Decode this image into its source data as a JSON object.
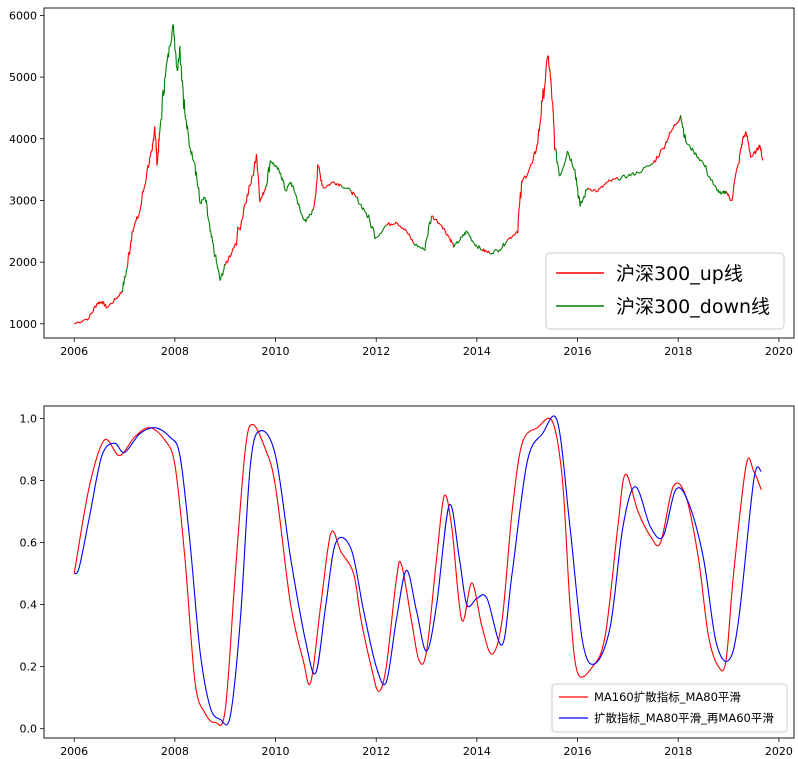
{
  "chart_data": [
    {
      "type": "line",
      "xlim": [
        2005.4,
        2020.3
      ],
      "ylim": [
        770,
        6120
      ],
      "xticks": [
        2006,
        2008,
        2010,
        2012,
        2014,
        2016,
        2018,
        2020
      ],
      "yticks": [
        1000,
        2000,
        3000,
        4000,
        5000,
        6000
      ],
      "grid": false,
      "legend": {
        "placement": "lower-right",
        "entries": [
          "沪深300_up线",
          "沪深300_down线"
        ]
      },
      "colors": {
        "up": "#ff0000",
        "down": "#008000"
      },
      "points": [
        [
          2006.0,
          1000,
          "u"
        ],
        [
          2006.3,
          1100,
          "u"
        ],
        [
          2006.45,
          1330,
          "u"
        ],
        [
          2006.55,
          1360,
          "u"
        ],
        [
          2006.65,
          1260,
          "u"
        ],
        [
          2006.85,
          1420,
          "u"
        ],
        [
          2006.95,
          1530,
          "d"
        ],
        [
          2007.05,
          1900,
          "u"
        ],
        [
          2007.15,
          2500,
          "u"
        ],
        [
          2007.3,
          2800,
          "u"
        ],
        [
          2007.45,
          3500,
          "u"
        ],
        [
          2007.55,
          3800,
          "u"
        ],
        [
          2007.6,
          4200,
          "u"
        ],
        [
          2007.65,
          3600,
          "u"
        ],
        [
          2007.7,
          4100,
          "d"
        ],
        [
          2007.8,
          5000,
          "d"
        ],
        [
          2007.9,
          5500,
          "d"
        ],
        [
          2007.97,
          5850,
          "d"
        ],
        [
          2008.05,
          5100,
          "d"
        ],
        [
          2008.1,
          5500,
          "d"
        ],
        [
          2008.2,
          4400,
          "d"
        ],
        [
          2008.3,
          3850,
          "d"
        ],
        [
          2008.4,
          3600,
          "d"
        ],
        [
          2008.5,
          2950,
          "d"
        ],
        [
          2008.6,
          3050,
          "d"
        ],
        [
          2008.7,
          2500,
          "d"
        ],
        [
          2008.8,
          2100,
          "d"
        ],
        [
          2008.9,
          1700,
          "d"
        ],
        [
          2009.0,
          1950,
          "u"
        ],
        [
          2009.2,
          2300,
          "u"
        ],
        [
          2009.4,
          2950,
          "u"
        ],
        [
          2009.55,
          3400,
          "u"
        ],
        [
          2009.62,
          3750,
          "u"
        ],
        [
          2009.7,
          3000,
          "u"
        ],
        [
          2009.8,
          3200,
          "d"
        ],
        [
          2009.9,
          3650,
          "d"
        ],
        [
          2010.0,
          3550,
          "d"
        ],
        [
          2010.1,
          3450,
          "d"
        ],
        [
          2010.2,
          3150,
          "d"
        ],
        [
          2010.3,
          3300,
          "d"
        ],
        [
          2010.4,
          3100,
          "d"
        ],
        [
          2010.5,
          2800,
          "d"
        ],
        [
          2010.6,
          2650,
          "d"
        ],
        [
          2010.75,
          2850,
          "u"
        ],
        [
          2010.85,
          3550,
          "u"
        ],
        [
          2010.95,
          3200,
          "u"
        ],
        [
          2011.15,
          3300,
          "u"
        ],
        [
          2011.3,
          3250,
          "d"
        ],
        [
          2011.5,
          3150,
          "u"
        ],
        [
          2011.6,
          3050,
          "d"
        ],
        [
          2011.8,
          2800,
          "d"
        ],
        [
          2012.0,
          2400,
          "d"
        ],
        [
          2012.2,
          2600,
          "u"
        ],
        [
          2012.4,
          2650,
          "u"
        ],
        [
          2012.6,
          2500,
          "u"
        ],
        [
          2012.75,
          2300,
          "d"
        ],
        [
          2012.95,
          2200,
          "d"
        ],
        [
          2013.1,
          2750,
          "u"
        ],
        [
          2013.3,
          2600,
          "u"
        ],
        [
          2013.45,
          2400,
          "u"
        ],
        [
          2013.55,
          2250,
          "d"
        ],
        [
          2013.7,
          2400,
          "d"
        ],
        [
          2013.8,
          2500,
          "d"
        ],
        [
          2013.95,
          2300,
          "d"
        ],
        [
          2014.1,
          2200,
          "u"
        ],
        [
          2014.25,
          2150,
          "d"
        ],
        [
          2014.45,
          2200,
          "d"
        ],
        [
          2014.6,
          2350,
          "u"
        ],
        [
          2014.8,
          2500,
          "u"
        ],
        [
          2014.9,
          3300,
          "u"
        ],
        [
          2015.1,
          3600,
          "u"
        ],
        [
          2015.2,
          3900,
          "u"
        ],
        [
          2015.3,
          4600,
          "u"
        ],
        [
          2015.42,
          5350,
          "u"
        ],
        [
          2015.5,
          4600,
          "u"
        ],
        [
          2015.55,
          3850,
          "d"
        ],
        [
          2015.65,
          3400,
          "d"
        ],
        [
          2015.8,
          3800,
          "d"
        ],
        [
          2015.95,
          3500,
          "d"
        ],
        [
          2016.05,
          2900,
          "d"
        ],
        [
          2016.2,
          3200,
          "u"
        ],
        [
          2016.4,
          3150,
          "u"
        ],
        [
          2016.6,
          3300,
          "u"
        ],
        [
          2016.8,
          3350,
          "d"
        ],
        [
          2017.0,
          3400,
          "d"
        ],
        [
          2017.2,
          3450,
          "d"
        ],
        [
          2017.5,
          3600,
          "u"
        ],
        [
          2017.7,
          3850,
          "u"
        ],
        [
          2017.85,
          4100,
          "u"
        ],
        [
          2018.05,
          4380,
          "d"
        ],
        [
          2018.15,
          3950,
          "d"
        ],
        [
          2018.3,
          3800,
          "d"
        ],
        [
          2018.5,
          3600,
          "d"
        ],
        [
          2018.7,
          3250,
          "d"
        ],
        [
          2018.85,
          3100,
          "d"
        ],
        [
          2018.95,
          3150,
          "u"
        ],
        [
          2019.05,
          3000,
          "u"
        ],
        [
          2019.2,
          3600,
          "u"
        ],
        [
          2019.28,
          4000,
          "u"
        ],
        [
          2019.35,
          4100,
          "u"
        ],
        [
          2019.45,
          3700,
          "u"
        ],
        [
          2019.55,
          3800,
          "u"
        ],
        [
          2019.62,
          3900,
          "u"
        ],
        [
          2019.68,
          3650,
          "d"
        ]
      ]
    },
    {
      "type": "line",
      "xlim": [
        2005.4,
        2020.3
      ],
      "ylim": [
        -0.03,
        1.04
      ],
      "xticks": [
        2006,
        2008,
        2010,
        2012,
        2014,
        2016,
        2018,
        2020
      ],
      "yticks": [
        0.0,
        0.2,
        0.4,
        0.6,
        0.8,
        1.0
      ],
      "grid": false,
      "legend": {
        "placement": "lower-right",
        "entries": [
          "MA160扩散指标_MA80平滑",
          "扩散指标_MA80平滑_再MA60平滑"
        ]
      },
      "series": [
        {
          "name": "MA160扩散指标_MA80平滑",
          "color": "#ff0000",
          "points": [
            [
              2006.0,
              0.5
            ],
            [
              2006.3,
              0.78
            ],
            [
              2006.6,
              0.93
            ],
            [
              2006.9,
              0.88
            ],
            [
              2007.2,
              0.94
            ],
            [
              2007.5,
              0.97
            ],
            [
              2007.8,
              0.93
            ],
            [
              2008.0,
              0.85
            ],
            [
              2008.2,
              0.55
            ],
            [
              2008.4,
              0.15
            ],
            [
              2008.6,
              0.05
            ],
            [
              2008.8,
              0.02
            ],
            [
              2009.0,
              0.06
            ],
            [
              2009.2,
              0.5
            ],
            [
              2009.4,
              0.9
            ],
            [
              2009.55,
              0.98
            ],
            [
              2009.8,
              0.9
            ],
            [
              2010.0,
              0.78
            ],
            [
              2010.3,
              0.4
            ],
            [
              2010.55,
              0.22
            ],
            [
              2010.7,
              0.15
            ],
            [
              2010.9,
              0.4
            ],
            [
              2011.1,
              0.63
            ],
            [
              2011.3,
              0.57
            ],
            [
              2011.55,
              0.5
            ],
            [
              2011.7,
              0.35
            ],
            [
              2011.9,
              0.2
            ],
            [
              2012.05,
              0.12
            ],
            [
              2012.2,
              0.2
            ],
            [
              2012.4,
              0.48
            ],
            [
              2012.5,
              0.53
            ],
            [
              2012.7,
              0.35
            ],
            [
              2012.85,
              0.22
            ],
            [
              2013.0,
              0.25
            ],
            [
              2013.2,
              0.55
            ],
            [
              2013.35,
              0.75
            ],
            [
              2013.5,
              0.65
            ],
            [
              2013.7,
              0.35
            ],
            [
              2013.9,
              0.47
            ],
            [
              2014.1,
              0.33
            ],
            [
              2014.3,
              0.24
            ],
            [
              2014.5,
              0.35
            ],
            [
              2014.7,
              0.7
            ],
            [
              2014.9,
              0.92
            ],
            [
              2015.2,
              0.97
            ],
            [
              2015.5,
              0.99
            ],
            [
              2015.7,
              0.8
            ],
            [
              2015.85,
              0.4
            ],
            [
              2016.0,
              0.18
            ],
            [
              2016.3,
              0.2
            ],
            [
              2016.55,
              0.3
            ],
            [
              2016.8,
              0.65
            ],
            [
              2016.95,
              0.82
            ],
            [
              2017.2,
              0.7
            ],
            [
              2017.45,
              0.62
            ],
            [
              2017.65,
              0.6
            ],
            [
              2017.9,
              0.78
            ],
            [
              2018.15,
              0.75
            ],
            [
              2018.4,
              0.55
            ],
            [
              2018.6,
              0.3
            ],
            [
              2018.8,
              0.2
            ],
            [
              2018.95,
              0.22
            ],
            [
              2019.1,
              0.5
            ],
            [
              2019.35,
              0.85
            ],
            [
              2019.5,
              0.83
            ],
            [
              2019.65,
              0.77
            ]
          ]
        },
        {
          "name": "扩散指标_MA80平滑_再MA60平滑",
          "color": "#0000ff",
          "points": [
            [
              2006.0,
              0.5
            ],
            [
              2006.1,
              0.52
            ],
            [
              2006.3,
              0.68
            ],
            [
              2006.55,
              0.88
            ],
            [
              2006.8,
              0.92
            ],
            [
              2007.0,
              0.89
            ],
            [
              2007.3,
              0.95
            ],
            [
              2007.6,
              0.97
            ],
            [
              2007.9,
              0.94
            ],
            [
              2008.1,
              0.88
            ],
            [
              2008.3,
              0.6
            ],
            [
              2008.5,
              0.25
            ],
            [
              2008.7,
              0.07
            ],
            [
              2008.9,
              0.03
            ],
            [
              2009.1,
              0.04
            ],
            [
              2009.3,
              0.35
            ],
            [
              2009.5,
              0.85
            ],
            [
              2009.7,
              0.96
            ],
            [
              2010.0,
              0.88
            ],
            [
              2010.3,
              0.55
            ],
            [
              2010.6,
              0.28
            ],
            [
              2010.8,
              0.18
            ],
            [
              2011.0,
              0.4
            ],
            [
              2011.2,
              0.6
            ],
            [
              2011.5,
              0.58
            ],
            [
              2011.75,
              0.38
            ],
            [
              2012.0,
              0.2
            ],
            [
              2012.2,
              0.15
            ],
            [
              2012.4,
              0.35
            ],
            [
              2012.6,
              0.51
            ],
            [
              2012.8,
              0.38
            ],
            [
              2013.0,
              0.25
            ],
            [
              2013.2,
              0.4
            ],
            [
              2013.45,
              0.72
            ],
            [
              2013.65,
              0.55
            ],
            [
              2013.8,
              0.4
            ],
            [
              2014.0,
              0.42
            ],
            [
              2014.2,
              0.42
            ],
            [
              2014.5,
              0.27
            ],
            [
              2014.7,
              0.5
            ],
            [
              2015.0,
              0.86
            ],
            [
              2015.3,
              0.95
            ],
            [
              2015.6,
              0.99
            ],
            [
              2015.85,
              0.65
            ],
            [
              2016.1,
              0.28
            ],
            [
              2016.35,
              0.21
            ],
            [
              2016.65,
              0.33
            ],
            [
              2016.9,
              0.65
            ],
            [
              2017.15,
              0.78
            ],
            [
              2017.45,
              0.65
            ],
            [
              2017.7,
              0.62
            ],
            [
              2017.95,
              0.77
            ],
            [
              2018.2,
              0.73
            ],
            [
              2018.5,
              0.55
            ],
            [
              2018.75,
              0.28
            ],
            [
              2019.0,
              0.22
            ],
            [
              2019.2,
              0.35
            ],
            [
              2019.5,
              0.8
            ],
            [
              2019.65,
              0.83
            ]
          ]
        }
      ]
    }
  ]
}
